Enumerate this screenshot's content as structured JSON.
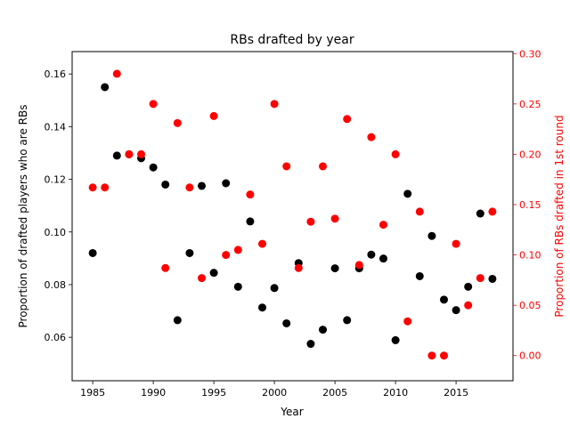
{
  "chart_data": {
    "type": "scatter",
    "title": "RBs drafted by year",
    "xlabel": "Year",
    "ylabel": "Proportion of drafted players who are RBs",
    "y2label": "Proportion of RBs drafted in 1st round",
    "xlim": [
      1983.3,
      2019.7
    ],
    "ylim": [
      0.0435,
      0.1685
    ],
    "y2lim": [
      -0.025,
      0.302
    ],
    "xticks": [
      1985,
      1990,
      1995,
      2000,
      2005,
      2010,
      2015
    ],
    "yticks": [
      0.06,
      0.08,
      0.1,
      0.12,
      0.14,
      0.16
    ],
    "ytick_labels": [
      "0.06",
      "0.08",
      "0.10",
      "0.12",
      "0.14",
      "0.16"
    ],
    "y2ticks": [
      0.0,
      0.05,
      0.1,
      0.15,
      0.2,
      0.25,
      0.3
    ],
    "y2tick_labels": [
      "0.00",
      "0.05",
      "0.10",
      "0.15",
      "0.20",
      "0.25",
      "0.30"
    ],
    "grid": false,
    "colors": {
      "left": "#000000",
      "right": "#ff0000",
      "axes": "#000000"
    },
    "series": [
      {
        "axis": "left",
        "color": "#000000",
        "x": [
          1985,
          1986,
          1987,
          1988,
          1989,
          1990,
          1991,
          1992,
          1993,
          1994,
          1995,
          1996,
          1997,
          1998,
          1999,
          2000,
          2001,
          2002,
          2003,
          2004,
          2005,
          2006,
          2007,
          2008,
          2009,
          2010,
          2011,
          2012,
          2013,
          2014,
          2015,
          2016,
          2017,
          2018
        ],
        "y": [
          0.092,
          0.155,
          0.129,
          0.1295,
          0.128,
          0.1245,
          0.118,
          0.0665,
          0.092,
          0.1175,
          0.0845,
          0.1185,
          0.0792,
          0.104,
          0.0713,
          0.0787,
          0.0653,
          0.0882,
          0.0575,
          0.0629,
          0.0862,
          0.0665,
          0.0862,
          0.0914,
          0.0899,
          0.0589,
          0.1145,
          0.0832,
          0.0985,
          0.0743,
          0.0703,
          0.0792,
          0.107,
          0.0822
        ]
      },
      {
        "axis": "right",
        "color": "#ff0000",
        "x": [
          1985,
          1986,
          1987,
          1988,
          1989,
          1990,
          1991,
          1992,
          1993,
          1994,
          1995,
          1996,
          1997,
          1998,
          1999,
          2000,
          2001,
          2002,
          2003,
          2004,
          2005,
          2006,
          2007,
          2008,
          2009,
          2010,
          2011,
          2012,
          2013,
          2014,
          2015,
          2016,
          2017,
          2018
        ],
        "y": [
          0.167,
          0.167,
          0.28,
          0.2,
          0.2,
          0.25,
          0.087,
          0.231,
          0.167,
          0.077,
          0.238,
          0.1,
          0.105,
          0.16,
          0.111,
          0.25,
          0.188,
          0.087,
          0.133,
          0.188,
          0.136,
          0.235,
          0.09,
          0.217,
          0.13,
          0.2,
          0.034,
          0.143,
          0.0,
          0.0,
          0.111,
          0.05,
          0.077,
          0.143
        ]
      }
    ]
  }
}
